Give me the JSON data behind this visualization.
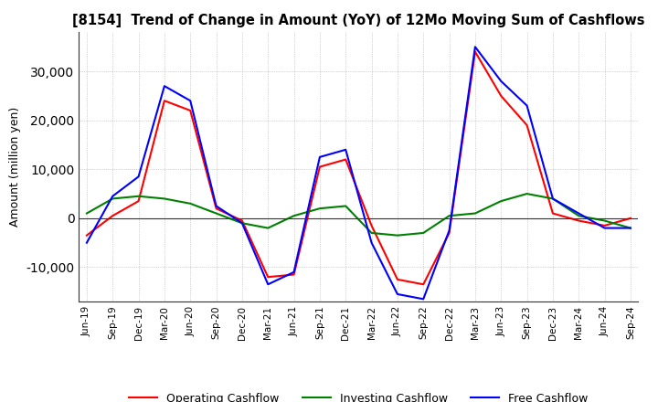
{
  "title": "[8154]  Trend of Change in Amount (YoY) of 12Mo Moving Sum of Cashflows",
  "ylabel": "Amount (million yen)",
  "background_color": "#ffffff",
  "grid_color": "#aaaaaa",
  "x_labels": [
    "Jun-19",
    "Sep-19",
    "Dec-19",
    "Mar-20",
    "Jun-20",
    "Sep-20",
    "Dec-20",
    "Mar-21",
    "Jun-21",
    "Sep-21",
    "Dec-21",
    "Mar-22",
    "Jun-22",
    "Sep-22",
    "Dec-22",
    "Mar-23",
    "Jun-23",
    "Sep-23",
    "Dec-23",
    "Mar-24",
    "Jun-24",
    "Sep-24"
  ],
  "operating": [
    -3500,
    500,
    3500,
    24000,
    22000,
    2000,
    -500,
    -12000,
    -11500,
    10500,
    12000,
    -1500,
    -12500,
    -13500,
    -3000,
    34000,
    25000,
    19000,
    1000,
    -500,
    -1500,
    0
  ],
  "investing": [
    1000,
    4000,
    4500,
    4000,
    3000,
    1000,
    -1000,
    -2000,
    500,
    2000,
    2500,
    -3000,
    -3500,
    -3000,
    500,
    1000,
    3500,
    5000,
    4000,
    500,
    -500,
    -2000
  ],
  "free": [
    -5000,
    4500,
    8500,
    27000,
    24000,
    2500,
    -1000,
    -13500,
    -11000,
    12500,
    14000,
    -5000,
    -15500,
    -16500,
    -2500,
    35000,
    28000,
    23000,
    4000,
    1000,
    -2000,
    -2000
  ],
  "operating_color": "#ff0000",
  "investing_color": "#008000",
  "free_color": "#0000ff",
  "ylim": [
    -17000,
    38000
  ],
  "yticks": [
    -10000,
    0,
    10000,
    20000,
    30000
  ]
}
